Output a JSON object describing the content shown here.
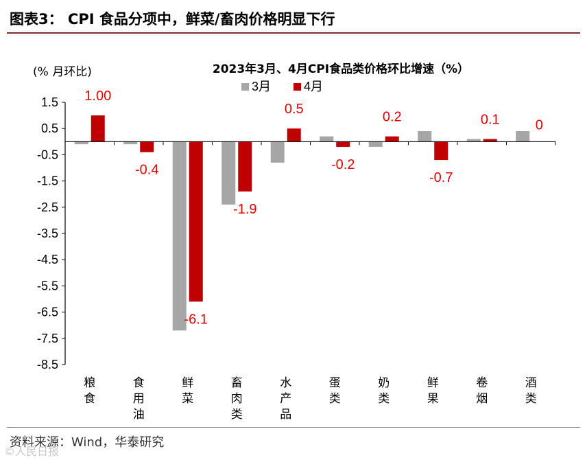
{
  "figure": {
    "title": "图表3： CPI 食品分项中，鲜菜/畜肉价格明显下行",
    "source": "资料来源：Wind，华泰研究",
    "watermark": "©人民日报"
  },
  "chart_data": {
    "type": "bar",
    "title": "2023年3月、4月CPI食品类价格环比增速（%）",
    "ylabel": "(% 月环比)",
    "xlabel": "",
    "ylim": [
      -8.5,
      1.5
    ],
    "yticks": [
      1.5,
      0.5,
      -0.5,
      -1.5,
      -2.5,
      -3.5,
      -4.5,
      -5.5,
      -6.5,
      -7.5,
      -8.5
    ],
    "ytick_labels": [
      "1.5",
      "0.5",
      "-0.5",
      "-1.5",
      "-2.5",
      "-3.5",
      "-4.5",
      "-5.5",
      "-6.5",
      "-7.5",
      "-8.5"
    ],
    "categories": [
      "粮食",
      "食用油",
      "鲜菜",
      "畜肉类",
      "水产品",
      "蛋类",
      "奶类",
      "鲜果",
      "卷烟",
      "酒类"
    ],
    "series": [
      {
        "name": "3月",
        "color": "#a6a6a6",
        "values": [
          -0.1,
          -0.1,
          -7.2,
          -2.4,
          -0.8,
          0.2,
          -0.2,
          0.4,
          0.1,
          0.4
        ]
      },
      {
        "name": "4月",
        "color": "#c00000",
        "values": [
          1.0,
          -0.4,
          -6.1,
          -1.9,
          0.5,
          -0.2,
          0.2,
          -0.7,
          0.1,
          0.0
        ]
      }
    ],
    "data_labels": [
      "1.00",
      "-0.4",
      "-6.1",
      "-1.9",
      "0.5",
      "-0.2",
      "0.2",
      "-0.7",
      "0.1",
      "0"
    ],
    "legend": "top-center",
    "grid": false
  }
}
